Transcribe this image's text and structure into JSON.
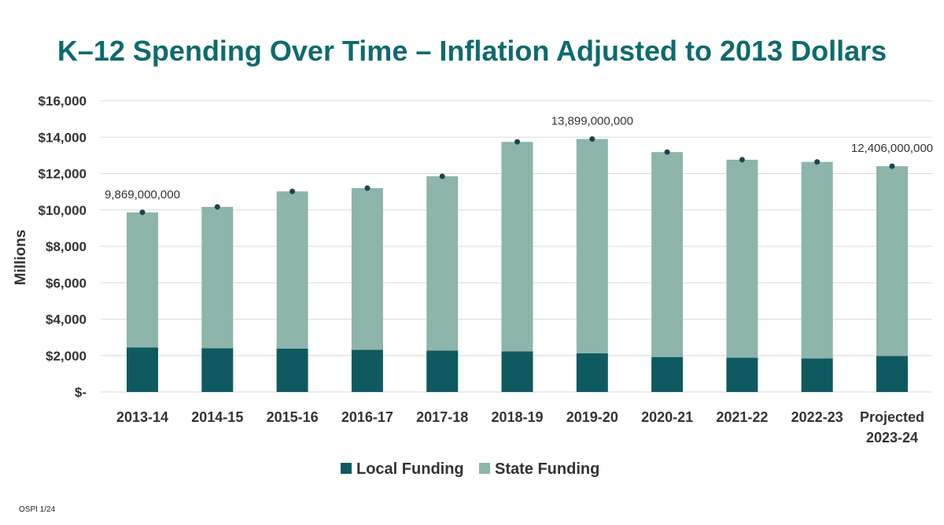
{
  "chart_data": {
    "type": "bar",
    "stacked": true,
    "title": "K–12 Spending Over Time – Inflation Adjusted to 2013 Dollars",
    "ylabel": "Millions",
    "xlabel": "",
    "ylim": [
      0,
      16000
    ],
    "yticks": [
      {
        "value": 0,
        "label": "$-"
      },
      {
        "value": 2000,
        "label": "$2,000"
      },
      {
        "value": 4000,
        "label": "$4,000"
      },
      {
        "value": 6000,
        "label": "$6,000"
      },
      {
        "value": 8000,
        "label": "$8,000"
      },
      {
        "value": 10000,
        "label": "$10,000"
      },
      {
        "value": 12000,
        "label": "$12,000"
      },
      {
        "value": 14000,
        "label": "$14,000"
      },
      {
        "value": 16000,
        "label": "$16,000"
      }
    ],
    "grid": true,
    "legend_position": "bottom",
    "categories": [
      [
        "2013-14"
      ],
      [
        "2014-15"
      ],
      [
        "2015-16"
      ],
      [
        "2016-17"
      ],
      [
        "2017-18"
      ],
      [
        "2018-19"
      ],
      [
        "2019-20"
      ],
      [
        "2020-21"
      ],
      [
        "2021-22"
      ],
      [
        "2022-23"
      ],
      [
        "Projected",
        "2023-24"
      ]
    ],
    "series": [
      {
        "name": "Local Funding",
        "color": "#0f5a60",
        "values": [
          2450,
          2400,
          2380,
          2320,
          2270,
          2230,
          2120,
          1920,
          1880,
          1840,
          1980
        ]
      },
      {
        "name": "State Funding",
        "color": "#8db5ab",
        "values": [
          7419,
          7770,
          8640,
          8880,
          9580,
          11510,
          11779,
          11260,
          10880,
          10800,
          10426
        ]
      }
    ],
    "total_markers": [
      9869,
      10170,
      11020,
      11200,
      11850,
      13740,
      13899,
      13180,
      12760,
      12640,
      12406
    ],
    "marker_color": "#1c4350",
    "data_labels": [
      {
        "index": 0,
        "text": "9,869,000,000"
      },
      {
        "index": 6,
        "text": "13,899,000,000"
      },
      {
        "index": 10,
        "text": "12,406,000,000"
      }
    ],
    "gridline_color": "#d9d9d9"
  },
  "footnote": "OSPI 1/24"
}
